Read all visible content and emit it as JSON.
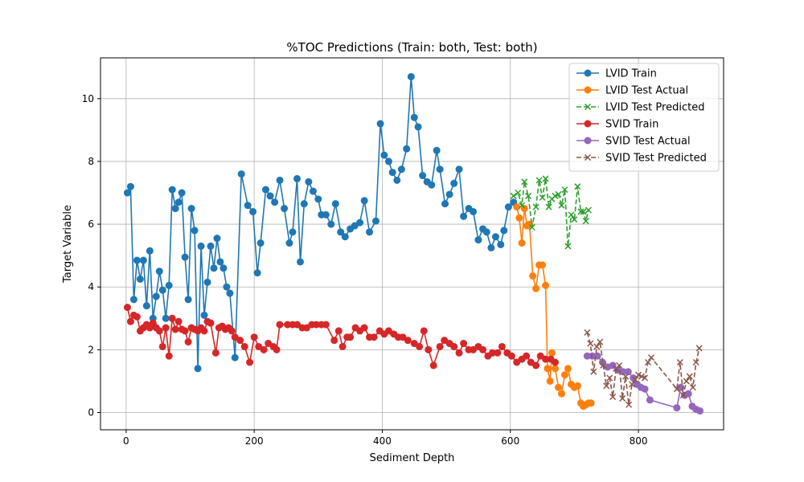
{
  "chart_data": {
    "type": "line",
    "title": "%TOC Predictions (Train: both, Test: both)",
    "xlabel": "Sediment Depth",
    "ylabel": "Target Variable",
    "xlim": [
      -40,
      933
    ],
    "ylim": [
      -0.55,
      11.3
    ],
    "x_ticks": [
      0,
      200,
      400,
      600,
      800
    ],
    "y_ticks": [
      0,
      2,
      4,
      6,
      8,
      10
    ],
    "grid": true,
    "legend_position": "top-right",
    "series": [
      {
        "name": "LVID Train",
        "color": "#1f77b4",
        "style": "solid",
        "marker": "circle",
        "x": [
          2,
          7,
          12,
          17,
          22,
          27,
          32,
          37,
          42,
          47,
          52,
          57,
          62,
          67,
          72,
          77,
          82,
          87,
          92,
          97,
          102,
          107,
          112,
          117,
          122,
          127,
          132,
          137,
          142,
          147,
          152,
          157,
          162,
          170,
          180,
          190,
          198,
          205,
          210,
          218,
          225,
          232,
          240,
          247,
          255,
          260,
          267,
          272,
          278,
          285,
          292,
          300,
          305,
          312,
          320,
          327,
          335,
          342,
          350,
          357,
          365,
          372,
          380,
          390,
          397,
          403,
          410,
          416,
          423,
          430,
          438,
          445,
          450,
          456,
          463,
          470,
          477,
          485,
          490,
          498,
          505,
          512,
          520,
          527,
          535,
          542,
          550,
          557,
          563,
          570,
          577,
          585,
          590,
          597,
          605
        ],
        "y": [
          7.0,
          7.2,
          3.6,
          4.85,
          4.25,
          4.85,
          3.4,
          5.15,
          3.0,
          3.7,
          4.5,
          3.9,
          3.0,
          4.05,
          7.1,
          6.5,
          6.7,
          7.0,
          4.95,
          3.6,
          6.5,
          5.8,
          1.4,
          5.3,
          3.1,
          4.15,
          5.3,
          4.6,
          5.55,
          4.8,
          4.6,
          4.0,
          3.8,
          1.75,
          7.6,
          6.6,
          6.4,
          4.45,
          5.4,
          7.1,
          6.9,
          6.7,
          7.4,
          6.5,
          5.4,
          5.75,
          7.45,
          4.8,
          6.65,
          7.35,
          7.05,
          6.8,
          6.3,
          6.3,
          6.0,
          6.65,
          5.75,
          5.6,
          5.85,
          5.95,
          6.05,
          6.75,
          5.75,
          6.1,
          9.2,
          8.2,
          8.0,
          7.65,
          7.4,
          7.75,
          8.4,
          10.7,
          9.4,
          9.1,
          7.55,
          7.35,
          7.25,
          8.35,
          7.75,
          6.65,
          6.95,
          7.3,
          7.75,
          6.25,
          6.5,
          6.4,
          5.5,
          5.85,
          5.75,
          5.25,
          5.6,
          5.35,
          5.8,
          6.55,
          6.7
        ]
      },
      {
        "name": "LVID Test Actual",
        "color": "#ff7f0e",
        "style": "solid",
        "marker": "circle",
        "x": [
          610,
          614,
          618,
          622,
          626,
          630,
          635,
          640,
          645,
          650,
          655,
          658,
          662,
          665,
          670,
          675,
          680,
          685,
          690,
          695,
          700,
          705,
          710,
          714,
          718,
          722,
          726
        ],
        "y": [
          6.55,
          6.2,
          5.4,
          6.5,
          5.95,
          6.0,
          4.35,
          3.95,
          4.7,
          4.7,
          4.05,
          1.4,
          1.0,
          1.9,
          1.4,
          0.8,
          0.6,
          1.2,
          1.4,
          0.9,
          0.8,
          0.85,
          0.3,
          0.2,
          0.25,
          0.3,
          0.3
        ],
        "chart_index_note": ""
      },
      {
        "name": "LVID Test Predicted",
        "color": "#2ca02c",
        "style": "dashed",
        "marker": "x",
        "x": [
          605,
          612,
          618,
          622,
          628,
          634,
          640,
          645,
          650,
          655,
          660,
          665,
          670,
          675,
          680,
          685,
          690,
          695,
          700,
          705,
          710,
          714,
          718,
          722
        ],
        "y": [
          6.9,
          7.0,
          6.6,
          7.35,
          6.9,
          5.9,
          6.55,
          7.4,
          6.85,
          7.45,
          6.55,
          6.8,
          6.9,
          6.95,
          6.6,
          7.1,
          5.3,
          6.3,
          6.15,
          7.2,
          6.4,
          6.4,
          6.1,
          6.45
        ]
      },
      {
        "name": "SVID Train",
        "color": "#d62728",
        "style": "solid",
        "marker": "circle",
        "x": [
          2,
          7,
          12,
          17,
          22,
          27,
          32,
          37,
          42,
          47,
          52,
          57,
          62,
          67,
          72,
          77,
          82,
          87,
          92,
          97,
          102,
          107,
          112,
          117,
          122,
          127,
          132,
          140,
          145,
          150,
          155,
          160,
          165,
          170,
          178,
          185,
          193,
          200,
          207,
          215,
          222,
          230,
          235,
          240,
          252,
          260,
          267,
          275,
          282,
          290,
          297,
          305,
          312,
          325,
          332,
          338,
          345,
          350,
          358,
          365,
          372,
          380,
          387,
          396,
          403,
          410,
          418,
          425,
          432,
          440,
          450,
          458,
          465,
          472,
          480,
          490,
          497,
          505,
          512,
          520,
          527,
          535,
          542,
          550,
          557,
          565,
          572,
          580,
          587,
          595,
          602,
          610,
          618,
          625,
          632,
          640,
          647,
          655,
          663,
          670
        ],
        "y": [
          3.35,
          2.9,
          3.1,
          3.05,
          2.6,
          2.7,
          2.8,
          2.7,
          2.85,
          2.7,
          2.6,
          2.1,
          2.7,
          1.8,
          3.0,
          2.65,
          2.9,
          2.65,
          2.6,
          2.25,
          2.7,
          2.65,
          2.6,
          2.7,
          2.6,
          2.9,
          2.85,
          1.9,
          2.7,
          2.75,
          2.65,
          2.7,
          2.6,
          2.4,
          2.3,
          2.1,
          1.6,
          2.4,
          2.1,
          2.0,
          2.2,
          2.1,
          2.0,
          2.8,
          2.8,
          2.8,
          2.8,
          2.7,
          2.7,
          2.8,
          2.8,
          2.8,
          2.8,
          2.3,
          2.6,
          2.1,
          2.4,
          2.4,
          2.7,
          2.6,
          2.7,
          2.4,
          2.4,
          2.6,
          2.5,
          2.6,
          2.5,
          2.4,
          2.4,
          2.3,
          2.2,
          2.1,
          2.6,
          2.0,
          1.5,
          2.1,
          2.3,
          2.2,
          2.1,
          1.9,
          2.2,
          2.0,
          2.0,
          2.1,
          2.0,
          1.8,
          1.9,
          1.9,
          2.1,
          1.9,
          1.8,
          1.6,
          1.7,
          1.8,
          1.6,
          1.5,
          1.8,
          1.7,
          1.7,
          1.6
        ]
      },
      {
        "name": "SVID Test Actual",
        "color": "#9467bd",
        "style": "solid",
        "marker": "circle",
        "x": [
          720,
          728,
          736,
          744,
          752,
          760,
          768,
          776,
          784,
          792,
          798,
          804,
          810,
          818,
          860,
          866,
          872,
          878,
          884,
          890,
          896
        ],
        "y": [
          1.8,
          1.8,
          1.8,
          1.6,
          1.45,
          1.5,
          1.35,
          1.3,
          1.3,
          1.1,
          0.9,
          0.8,
          0.75,
          0.4,
          0.15,
          0.8,
          0.55,
          0.6,
          0.2,
          0.1,
          0.05
        ]
      },
      {
        "name": "SVID Test Predicted",
        "color": "#8c564b",
        "style": "dashed",
        "marker": "x",
        "x": [
          720,
          725,
          730,
          735,
          740,
          745,
          750,
          755,
          760,
          765,
          770,
          775,
          780,
          785,
          790,
          795,
          800,
          805,
          810,
          815,
          820,
          860,
          865,
          870,
          875,
          880,
          885,
          890,
          895
        ],
        "y": [
          2.55,
          2.2,
          1.3,
          2.1,
          2.25,
          1.5,
          0.85,
          1.1,
          0.5,
          1.4,
          1.5,
          0.45,
          1.15,
          0.25,
          0.9,
          1.05,
          1.2,
          1.15,
          1.1,
          1.6,
          1.75,
          0.75,
          1.6,
          0.55,
          1.0,
          1.15,
          0.8,
          1.6,
          2.05
        ]
      }
    ]
  }
}
